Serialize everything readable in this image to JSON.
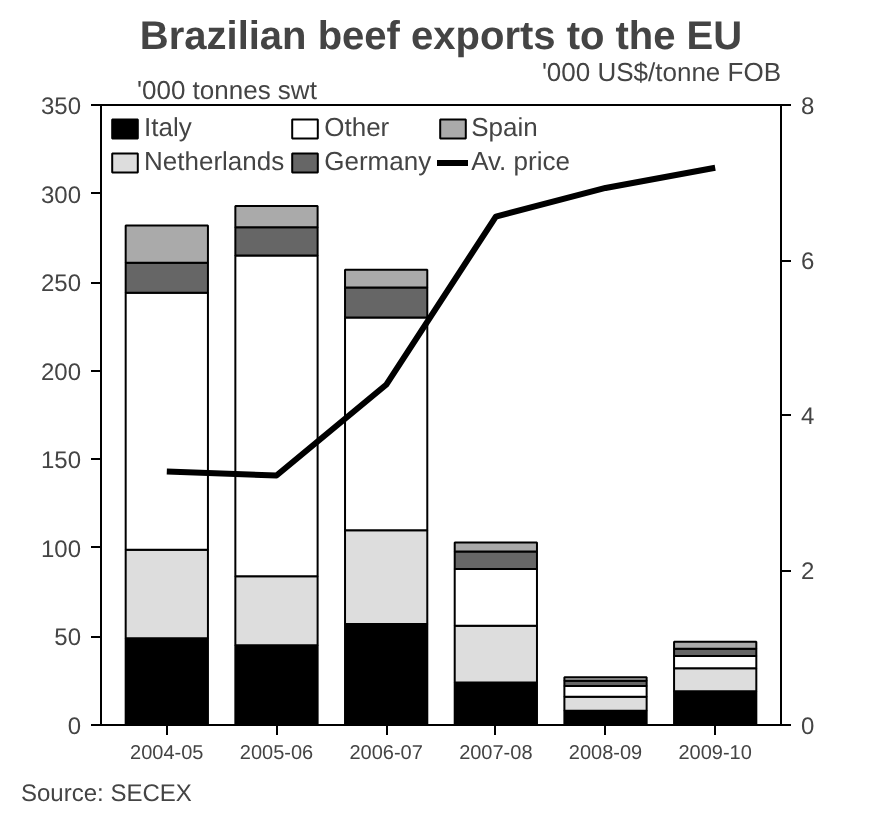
{
  "chart_data": {
    "type": "bar",
    "title": "Brazilian beef exports to the EU",
    "ylabel": "'000 tonnes swt",
    "y2label": "'000 US$/tonne FOB",
    "categories": [
      "2004-05",
      "2005-06",
      "2006-07",
      "2007-08",
      "2008-09",
      "2009-10"
    ],
    "stacked": true,
    "series": [
      {
        "name": "Italy",
        "color": "#000000",
        "values": [
          49,
          45,
          57,
          24,
          8,
          19
        ]
      },
      {
        "name": "Netherlands",
        "color": "#dddddd",
        "values": [
          50,
          39,
          53,
          32,
          8,
          13
        ]
      },
      {
        "name": "Other",
        "color": "#ffffff",
        "values": [
          145,
          181,
          120,
          32,
          6,
          7
        ]
      },
      {
        "name": "Germany",
        "color": "#666666",
        "values": [
          17,
          16,
          17,
          10,
          3,
          4
        ]
      },
      {
        "name": "Spain",
        "color": "#aaaaaa",
        "values": [
          21,
          12,
          10,
          5,
          2,
          4
        ]
      },
      {
        "name": "Av. price",
        "color": "#000000",
        "type": "line",
        "axis": "y2",
        "values": [
          3.27,
          3.22,
          4.39,
          6.56,
          6.93,
          7.19
        ]
      }
    ],
    "ylim": [
      0,
      350
    ],
    "yticks": [
      0,
      50,
      100,
      150,
      200,
      250,
      300,
      350
    ],
    "y2lim": [
      0,
      8
    ],
    "y2ticks": [
      0,
      2,
      4,
      6,
      8
    ],
    "legend": "top",
    "grid": false,
    "annotations": [
      "Source: SECEX"
    ]
  }
}
